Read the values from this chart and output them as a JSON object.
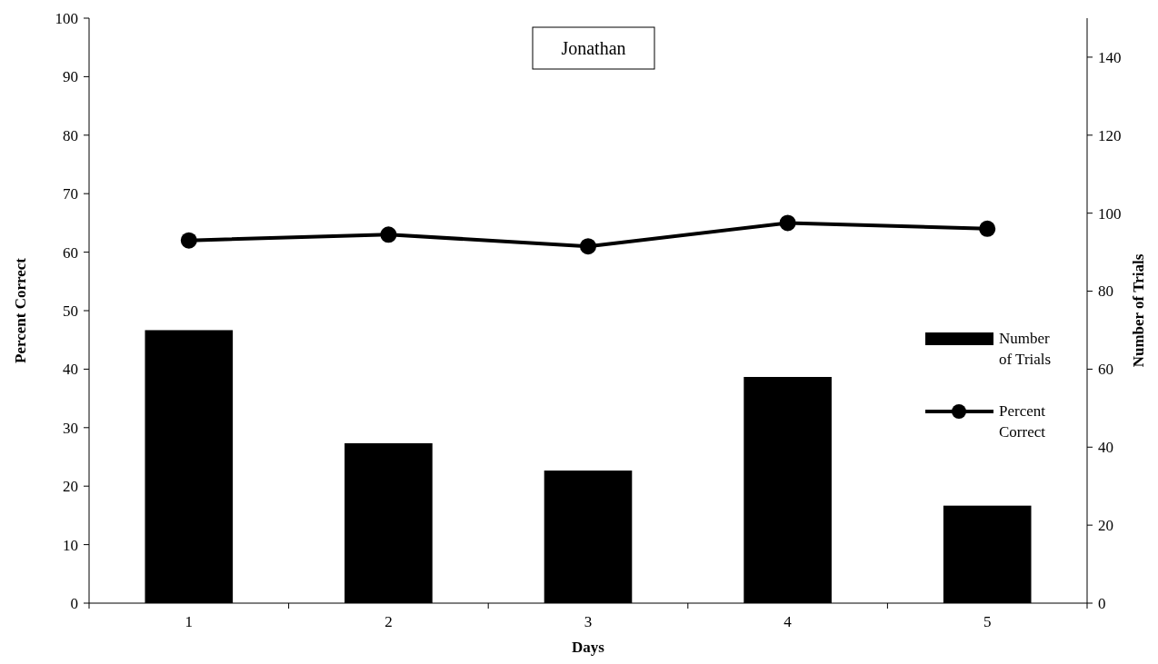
{
  "chart_data": {
    "type": "bar",
    "title": "Jonathan",
    "xlabel": "Days",
    "ylabel": "Percent Correct",
    "y2label": "Number of Trials",
    "categories": [
      "1",
      "2",
      "3",
      "4",
      "5"
    ],
    "series": [
      {
        "name": "Number of Trials",
        "axis": "y2",
        "color": "#000000",
        "values": [
          70,
          41,
          34,
          58,
          25
        ]
      },
      {
        "name": "Percent Correct",
        "type": "line",
        "color": "#000000",
        "values": [
          62,
          63,
          61,
          65,
          64
        ]
      }
    ],
    "ylim": [
      0,
      100
    ],
    "yticks": [
      0,
      10,
      20,
      30,
      40,
      50,
      60,
      70,
      80,
      90,
      100
    ],
    "y2lim": [
      0,
      150
    ],
    "y2ticks": [
      0,
      20,
      40,
      60,
      80,
      100,
      120,
      140
    ],
    "marker": "circle",
    "line_style": "solid",
    "legend": "right",
    "grid": false
  }
}
